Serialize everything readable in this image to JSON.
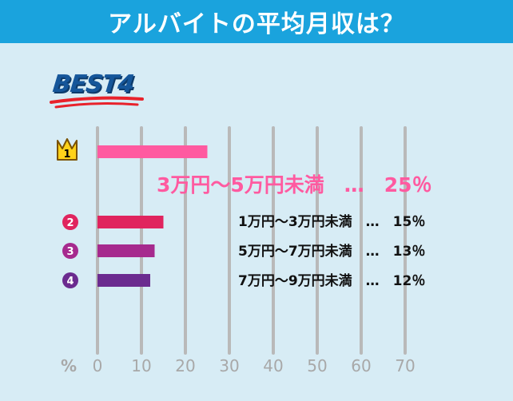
{
  "header": {
    "title": "アルバイトの平均月収は？"
  },
  "badge": {
    "label": "BEST4"
  },
  "rank_badges": [
    "1",
    "2",
    "3",
    "4"
  ],
  "axis_unit": "%",
  "chart_data": {
    "type": "bar",
    "orientation": "horizontal",
    "categories": [
      "3万円〜5万円未満",
      "1万円〜3万円未満",
      "5万円〜7万円未満",
      "7万円〜9万円未満"
    ],
    "values": [
      25,
      15,
      13,
      12
    ],
    "value_labels": [
      "3万円〜5万円未満　…　25％",
      "1万円〜3万円未満　…　15％",
      "5万円〜7万円未満　…　13％",
      "7万円〜9万円未満　…　12％"
    ],
    "xlim": [
      0,
      70
    ],
    "xticks": [
      0,
      10,
      20,
      30,
      40,
      50,
      60,
      70
    ],
    "grid": true,
    "colors": [
      "#ff5aa0",
      "#e0245e",
      "#a62a8e",
      "#6b2b8f"
    ]
  }
}
